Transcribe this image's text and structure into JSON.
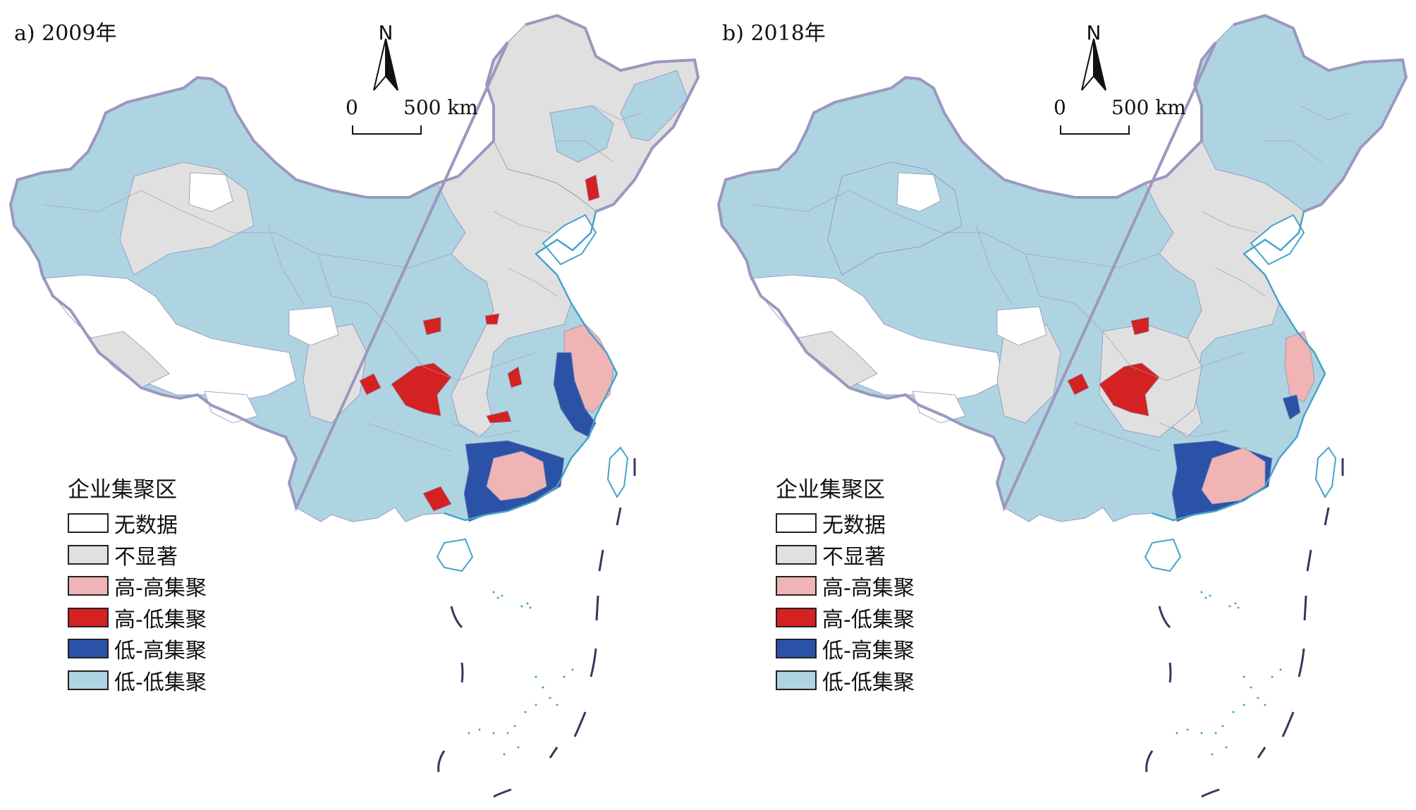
{
  "colors": {
    "no_data": "#ffffff",
    "not_significant": "#e0e0e0",
    "high_high": "#f0b4b4",
    "high_low": "#d42121",
    "low_high": "#2a53a8",
    "low_low": "#aed4e2",
    "border": "#9b98bf",
    "coast": "#45a3c9"
  },
  "panels": [
    {
      "label": "a) 2009年",
      "north": "N",
      "scale": {
        "zero": "0",
        "max": "500 km"
      },
      "legend": {
        "title": "企业集聚区",
        "items": [
          {
            "key": "no_data",
            "label": "无数据"
          },
          {
            "key": "not_significant",
            "label": "不显著"
          },
          {
            "key": "high_high",
            "label": "高-高集聚"
          },
          {
            "key": "high_low",
            "label": "高-低集聚"
          },
          {
            "key": "low_high",
            "label": "低-高集聚"
          },
          {
            "key": "low_low",
            "label": "低-低集聚"
          }
        ]
      },
      "regions": {
        "northeast": "not_significant",
        "north_china_plain": "not_significant",
        "yangtze_delta": "high_high",
        "zhejiang_fujian_coast": "low_high",
        "guangdong": "high_high",
        "guangdong_periphery": "low_high",
        "west": "low_low"
      }
    },
    {
      "label": "b) 2018年",
      "north": "N",
      "scale": {
        "zero": "0",
        "max": "500 km"
      },
      "legend": {
        "title": "企业集聚区",
        "items": [
          {
            "key": "no_data",
            "label": "无数据"
          },
          {
            "key": "not_significant",
            "label": "不显著"
          },
          {
            "key": "high_high",
            "label": "高-高集聚"
          },
          {
            "key": "high_low",
            "label": "高-低集聚"
          },
          {
            "key": "low_high",
            "label": "低-高集聚"
          },
          {
            "key": "low_low",
            "label": "低-低集聚"
          }
        ]
      },
      "regions": {
        "northeast": "low_low",
        "north_china_plain": "not_significant",
        "yangtze_delta": "high_high",
        "zhejiang_fujian_coast": "low_high",
        "guangdong": "high_high",
        "guangdong_periphery": "low_high",
        "west": "low_low"
      }
    }
  ]
}
